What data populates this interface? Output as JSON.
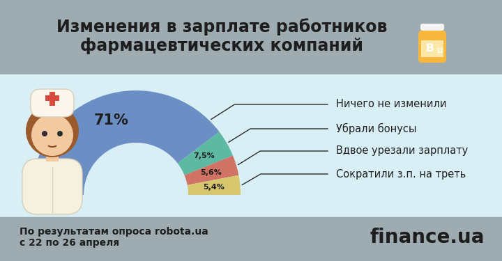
{
  "chart_data": {
    "type": "pie",
    "title": "Изменения в зарплате работников\nфармацевтических компаний",
    "categories": [
      "Ничего не изменили",
      "Убрали бонусы",
      "Вдвое урезали зарплату",
      "Сократили з.п. на треть"
    ],
    "values": [
      71,
      7.5,
      5.6,
      5.4
    ],
    "value_labels": [
      "71%",
      "7,5%",
      "5,6%",
      "5,4%"
    ],
    "colors": [
      "#6b8fc4",
      "#5db9a1",
      "#d07264",
      "#d6c66e"
    ],
    "data_labels": true
  },
  "footer": {
    "source": "По результатам опроса robota.ua\nс 22 по 26 апреля",
    "logo": "finance.ua"
  },
  "icon": {
    "bottle_label": "B",
    "bottle_subscript": "12"
  }
}
